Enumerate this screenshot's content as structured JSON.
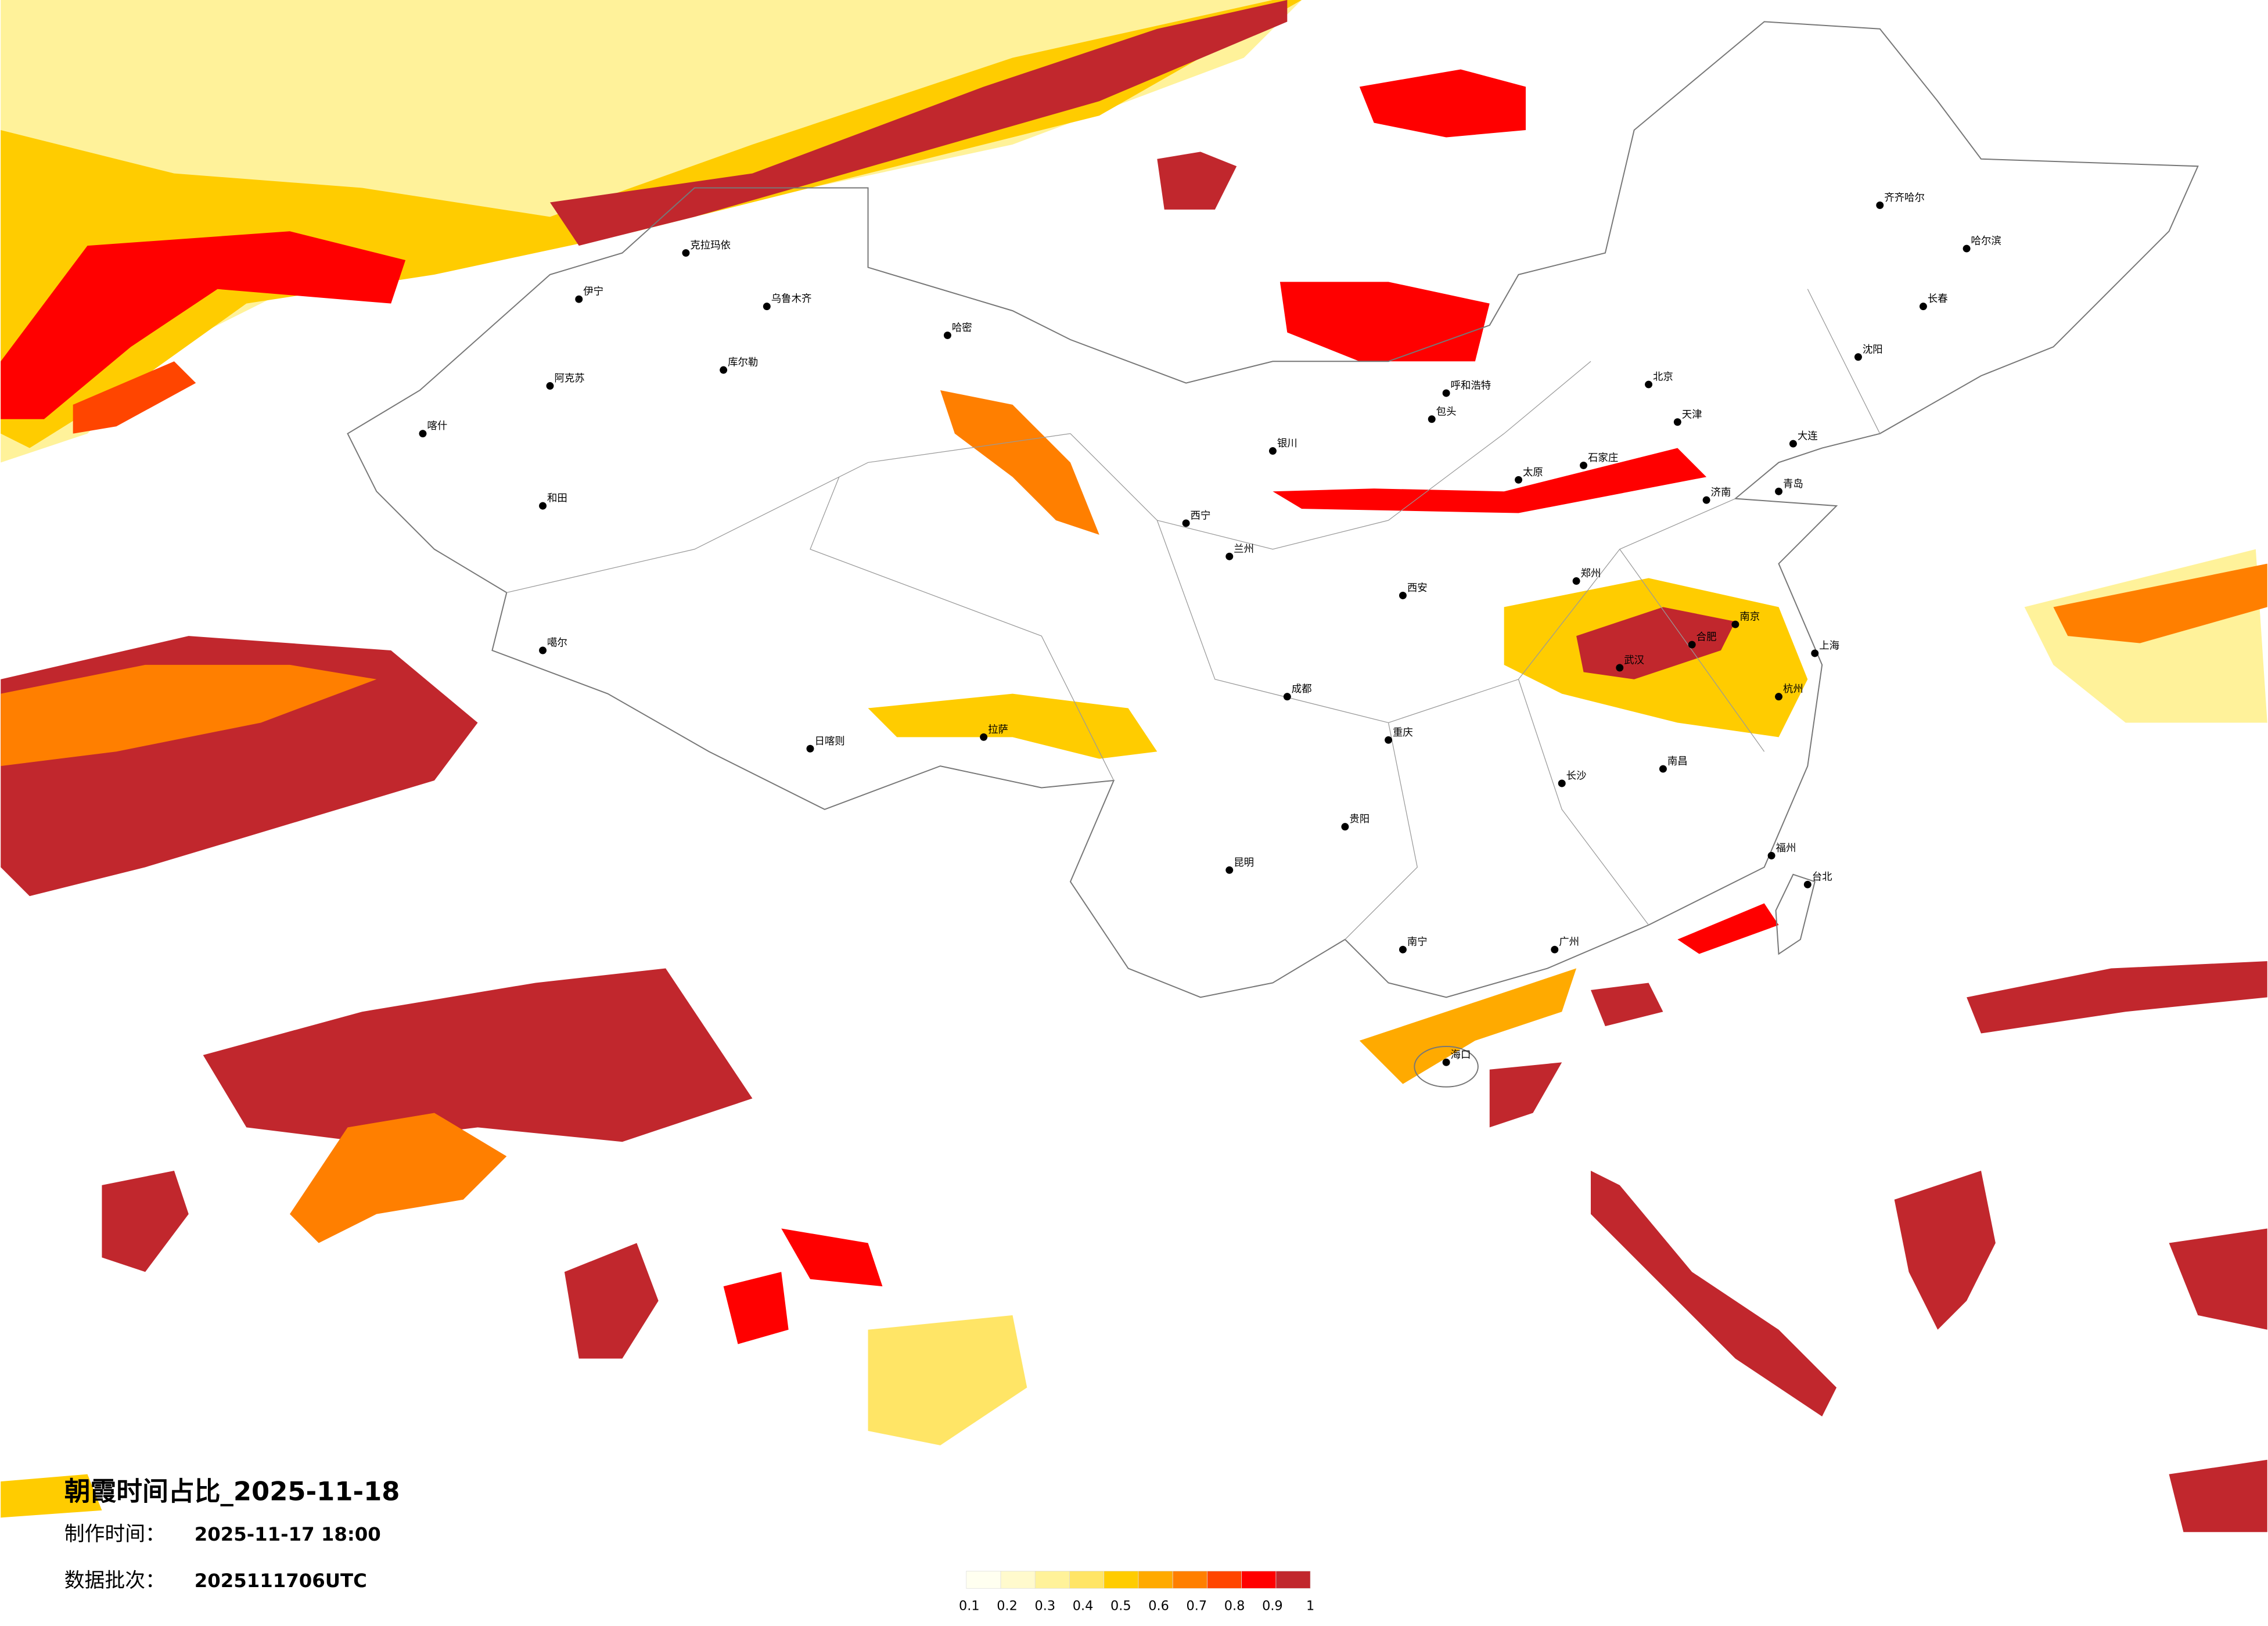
{
  "header": {
    "title": "朝霞时间占比_2025-11-18",
    "made_label": "制作时间：",
    "made_time": "2025-11-17 18:00",
    "batch_label": "数据批次：",
    "batch": "2025111706UTC"
  },
  "legend": {
    "colors": [
      "#fffff0",
      "#fffacd",
      "#fff29a",
      "#ffe566",
      "#ffcc00",
      "#ffaa00",
      "#ff7f00",
      "#ff4500",
      "#ff0000",
      "#c1272d"
    ],
    "ticks": [
      0.1,
      0.2,
      0.3,
      0.4,
      0.5,
      0.6,
      0.7,
      0.8,
      0.9,
      1
    ]
  },
  "cities": [
    "克拉玛依",
    "伊宁",
    "乌鲁木齐",
    "哈密",
    "库尔勒",
    "阿克苏",
    "喀什",
    "和田",
    "噶尔",
    "日喀则",
    "拉萨",
    "西宁",
    "兰州",
    "银川",
    "呼和浩特",
    "北京",
    "天津",
    "石家庄",
    "太原",
    "济南",
    "郑州",
    "西安",
    "成都",
    "重庆",
    "武汉",
    "南京",
    "上海",
    "杭州",
    "合肥",
    "长沙",
    "南昌",
    "福州",
    "广州",
    "南宁",
    "贵阳",
    "昆明",
    "海口",
    "台北",
    "哈尔滨",
    "长春",
    "沈阳",
    "大连",
    "齐齐哈尔",
    "包头",
    "青岛"
  ]
}
